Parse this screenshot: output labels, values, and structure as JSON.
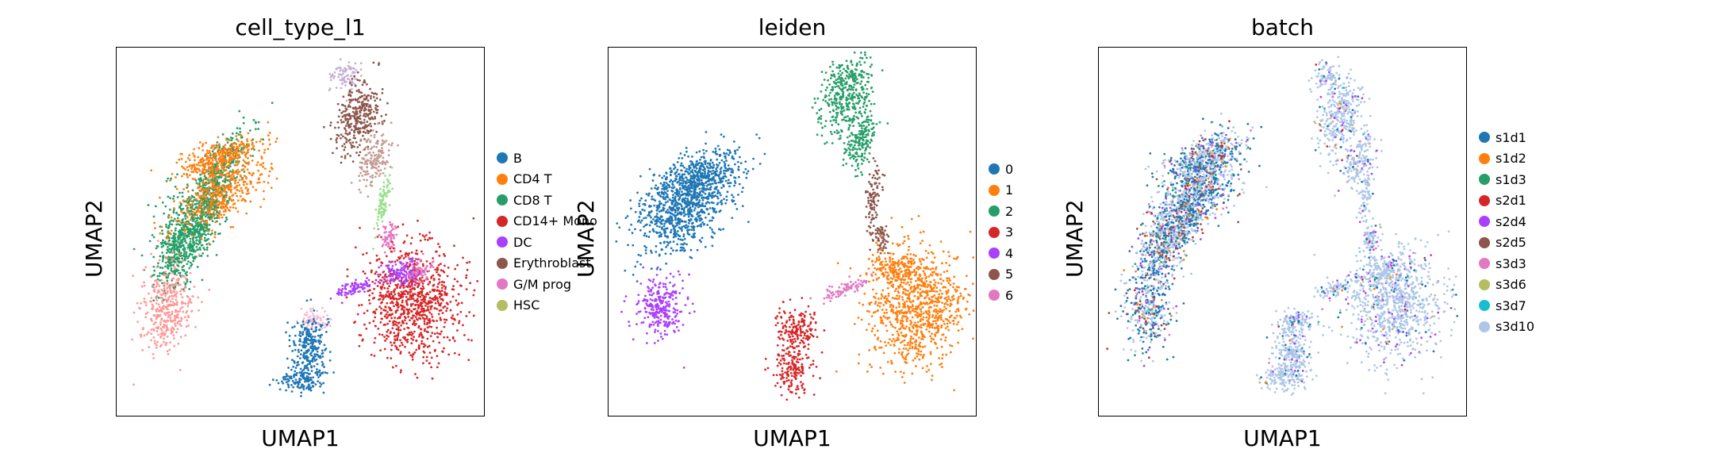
{
  "chart_data": [
    {
      "type": "scatter",
      "title": "cell_type_l1",
      "xlabel": "UMAP1",
      "ylabel": "UMAP2",
      "legend_position": "right",
      "grid": false,
      "legend": [
        {
          "label": "B",
          "color": "#1f77b4"
        },
        {
          "label": "CD4 T",
          "color": "#ff7f0e"
        },
        {
          "label": "CD8 T",
          "color": "#279e68"
        },
        {
          "label": "CD14+ Mono",
          "color": "#d62728"
        },
        {
          "label": "DC",
          "color": "#aa40fc"
        },
        {
          "label": "Erythroblast",
          "color": "#8c564b"
        },
        {
          "label": "G/M prog",
          "color": "#e377c2"
        },
        {
          "label": "HSC",
          "color": "#b5bd61"
        }
      ]
    },
    {
      "type": "scatter",
      "title": "leiden",
      "xlabel": "UMAP1",
      "ylabel": "UMAP2",
      "legend_position": "right",
      "grid": false,
      "legend": [
        {
          "label": "0",
          "color": "#1f77b4"
        },
        {
          "label": "1",
          "color": "#ff7f0e"
        },
        {
          "label": "2",
          "color": "#279e68"
        },
        {
          "label": "3",
          "color": "#d62728"
        },
        {
          "label": "4",
          "color": "#aa40fc"
        },
        {
          "label": "5",
          "color": "#8c564b"
        },
        {
          "label": "6",
          "color": "#e377c2"
        }
      ]
    },
    {
      "type": "scatter",
      "title": "batch",
      "xlabel": "UMAP1",
      "ylabel": "UMAP2",
      "legend_position": "right",
      "grid": false,
      "legend": [
        {
          "label": "s1d1",
          "color": "#1f77b4"
        },
        {
          "label": "s1d2",
          "color": "#ff7f0e"
        },
        {
          "label": "s1d3",
          "color": "#279e68"
        },
        {
          "label": "s2d1",
          "color": "#d62728"
        },
        {
          "label": "s2d4",
          "color": "#aa40fc"
        },
        {
          "label": "s2d5",
          "color": "#8c564b"
        },
        {
          "label": "s3d3",
          "color": "#e377c2"
        },
        {
          "label": "s3d6",
          "color": "#b5bd61"
        },
        {
          "label": "s3d7",
          "color": "#17becf"
        },
        {
          "label": "s3d10",
          "color": "#aec7e8"
        }
      ]
    }
  ]
}
